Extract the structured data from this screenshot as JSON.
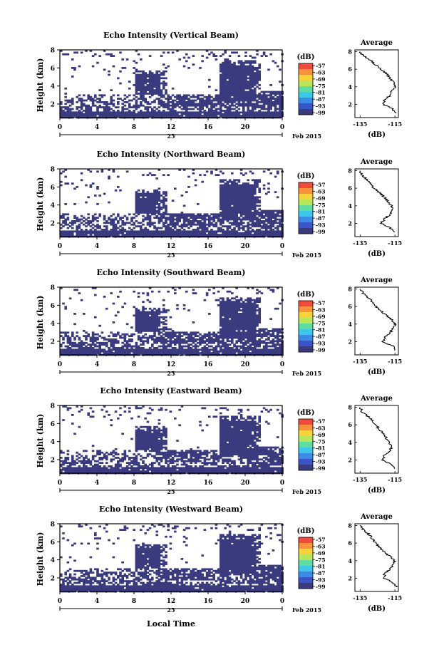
{
  "figure": {
    "x_axis_title": "Local Time",
    "date_day": "25",
    "date_month_year": "Feb 2015",
    "colorbar_unit": "(dB)",
    "colorbar_ticks": [
      "-57",
      "-63",
      "-69",
      "-75",
      "-81",
      "-87",
      "-93",
      "-99"
    ],
    "colorbar_colors": [
      "#ef4a3c",
      "#f7913c",
      "#f7d23c",
      "#b9e55a",
      "#5fdca0",
      "#3cc8e6",
      "#3c8ce6",
      "#3a55c8",
      "#3a3a7e"
    ],
    "echo_color": "#3a3a7e",
    "x_ticks": [
      "0",
      "4",
      "8",
      "12",
      "16",
      "20",
      "0"
    ],
    "y_ticks": [
      "2",
      "4",
      "6",
      "8"
    ],
    "y_label": "Height (km)",
    "profile_title": "Average",
    "profile_x_ticks": [
      "-135",
      "-115"
    ],
    "profile_x_label": "(dB)",
    "profile_y_ticks": [
      "2",
      "4",
      "6",
      "8"
    ]
  },
  "chart_data": [
    {
      "type": "heatmap",
      "title": "Echo Intensity (Vertical Beam)",
      "ylabel": "Height (km)",
      "x_ticks": [
        "0",
        "4",
        "8",
        "12",
        "16",
        "20",
        "0"
      ],
      "xlim_hours": [
        0,
        24
      ],
      "ylim_km": [
        0.5,
        8
      ],
      "colorbar_range_db": [
        -99,
        -57
      ],
      "profile": {
        "title": "Average",
        "xlabel": "(dB)",
        "xlim": [
          -138,
          -113
        ],
        "height_km": [
          1.0,
          1.5,
          2.0,
          2.5,
          3.0,
          3.5,
          4.0,
          4.5,
          5.0,
          5.5,
          6.0,
          6.5,
          7.0,
          7.5,
          8.0
        ],
        "db": [
          -115,
          -116,
          -122,
          -121,
          -118,
          -117,
          -115,
          -116,
          -118,
          -120,
          -123,
          -126,
          -129,
          -133,
          -135
        ]
      }
    },
    {
      "type": "heatmap",
      "title": "Echo Intensity (Northward Beam)",
      "ylabel": "Height (km)",
      "x_ticks": [
        "0",
        "4",
        "8",
        "12",
        "16",
        "20",
        "0"
      ],
      "xlim_hours": [
        0,
        24
      ],
      "ylim_km": [
        0.5,
        8
      ],
      "colorbar_range_db": [
        -99,
        -57
      ],
      "profile": {
        "title": "Average",
        "xlabel": "(dB)",
        "xlim": [
          -138,
          -113
        ],
        "height_km": [
          1.0,
          1.5,
          2.0,
          2.5,
          3.0,
          3.5,
          4.0,
          4.5,
          5.0,
          5.5,
          6.0,
          6.5,
          7.0,
          7.5,
          8.0
        ],
        "db": [
          -115,
          -118,
          -123,
          -121,
          -118,
          -116,
          -117,
          -119,
          -121,
          -124,
          -127,
          -129,
          -131,
          -134,
          -135
        ]
      }
    },
    {
      "type": "heatmap",
      "title": "Echo Intensity (Southward Beam)",
      "ylabel": "Height (km)",
      "x_ticks": [
        "0",
        "4",
        "8",
        "12",
        "16",
        "20",
        "0"
      ],
      "xlim_hours": [
        0,
        24
      ],
      "ylim_km": [
        0.5,
        8
      ],
      "colorbar_range_db": [
        -99,
        -57
      ],
      "profile": {
        "title": "Average",
        "xlabel": "(dB)",
        "xlim": [
          -138,
          -113
        ],
        "height_km": [
          1.0,
          1.5,
          2.0,
          2.5,
          3.0,
          3.5,
          4.0,
          4.5,
          5.0,
          5.5,
          6.0,
          6.5,
          7.0,
          7.5,
          8.0
        ],
        "db": [
          -115,
          -116,
          -122,
          -121,
          -118,
          -116,
          -115,
          -117,
          -120,
          -123,
          -126,
          -128,
          -130,
          -133,
          -135
        ]
      }
    },
    {
      "type": "heatmap",
      "title": "Echo Intensity (Eastward Beam)",
      "ylabel": "Height (km)",
      "x_ticks": [
        "0",
        "4",
        "8",
        "12",
        "16",
        "20",
        "0"
      ],
      "xlim_hours": [
        0,
        24
      ],
      "ylim_km": [
        0.5,
        8
      ],
      "colorbar_range_db": [
        -99,
        -57
      ],
      "profile": {
        "title": "Average",
        "xlabel": "(dB)",
        "xlim": [
          -138,
          -113
        ],
        "height_km": [
          1.0,
          1.5,
          2.0,
          2.5,
          3.0,
          3.5,
          4.0,
          4.5,
          5.0,
          5.5,
          6.0,
          6.5,
          7.0,
          7.5,
          8.0
        ],
        "db": [
          -115,
          -117,
          -122,
          -121,
          -118,
          -117,
          -118,
          -120,
          -122,
          -124,
          -126,
          -128,
          -131,
          -134,
          -135
        ]
      }
    },
    {
      "type": "heatmap",
      "title": "Echo Intensity (Westward Beam)",
      "ylabel": "Height (km)",
      "x_ticks": [
        "0",
        "4",
        "8",
        "12",
        "16",
        "20",
        "0"
      ],
      "xlim_hours": [
        0,
        24
      ],
      "ylim_km": [
        0.5,
        8
      ],
      "colorbar_range_db": [
        -99,
        -57
      ],
      "profile": {
        "title": "Average",
        "xlabel": "(dB)",
        "xlim": [
          -138,
          -113
        ],
        "height_km": [
          1.0,
          1.5,
          2.0,
          2.5,
          3.0,
          3.5,
          4.0,
          4.5,
          5.0,
          5.5,
          6.0,
          6.5,
          7.0,
          7.5,
          8.0
        ],
        "db": [
          -114,
          -116,
          -121,
          -121,
          -118,
          -116,
          -115,
          -118,
          -121,
          -124,
          -126,
          -128,
          -130,
          -133,
          -135
        ]
      }
    }
  ]
}
